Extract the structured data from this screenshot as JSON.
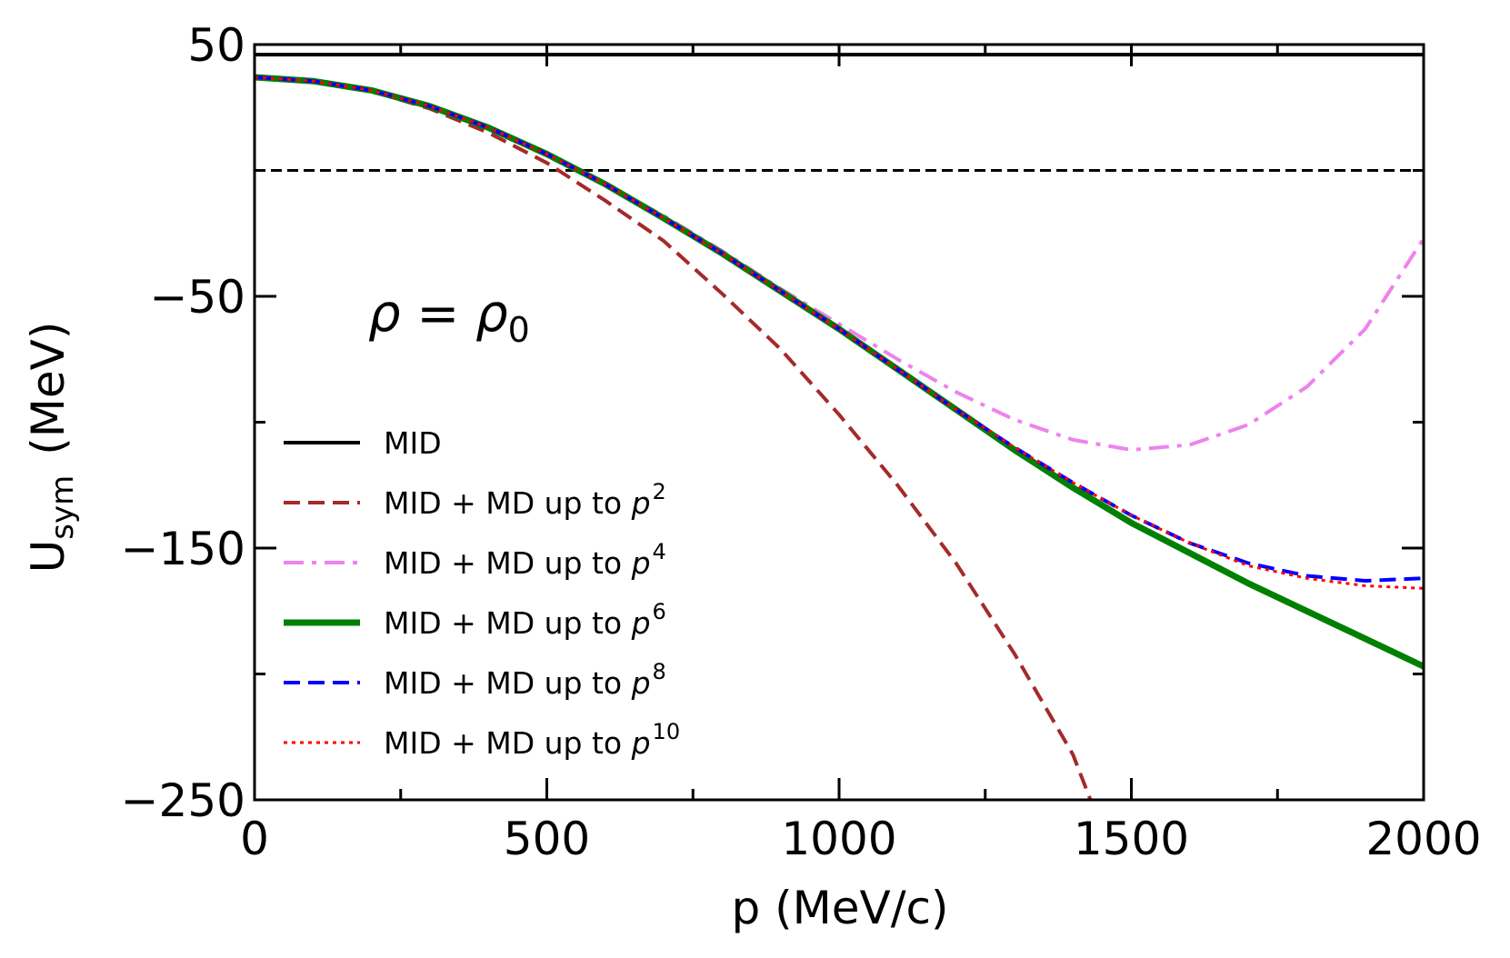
{
  "chart_data": {
    "type": "line",
    "xlabel": "p  (MeV/c)",
    "ylabel": {
      "main": "U",
      "sub": "sym",
      "units": "(MeV)"
    },
    "xlim": [
      0,
      2000
    ],
    "ylim": [
      -250,
      50
    ],
    "x_ticks": [
      0,
      500,
      1000,
      1500,
      2000
    ],
    "y_ticks": [
      50,
      -50,
      -150,
      -250
    ],
    "x_tick_labels": [
      "0",
      "500",
      "1000",
      "1500",
      "2000"
    ],
    "y_tick_labels": [
      "50",
      "−50",
      "−150",
      "−250"
    ],
    "grid": false,
    "legend_placement": "lower-left",
    "annotation": {
      "main": "ρ = ρ",
      "sub": "0"
    },
    "reference_line": {
      "y": 0,
      "style": "dashed",
      "color": "#000000"
    },
    "series": [
      {
        "name": "MID",
        "color": "#000000",
        "dash": "solid",
        "width": 4,
        "legend_exp": "",
        "x": [
          0,
          2000
        ],
        "y": [
          46,
          46
        ]
      },
      {
        "name": "MID + MD up to p",
        "legend_exp": "2",
        "color": "#a52a2a",
        "dash": "dashed",
        "width": 4,
        "x": [
          0,
          100,
          200,
          300,
          400,
          500,
          600,
          700,
          800,
          900,
          1000,
          1100,
          1200,
          1300,
          1400,
          1430
        ],
        "y": [
          37,
          35.5,
          31.5,
          24.5,
          15,
          3,
          -12,
          -28,
          -49,
          -71,
          -97,
          -125,
          -156,
          -192,
          -232,
          -250
        ]
      },
      {
        "name": "MID + MD up to p",
        "legend_exp": "4",
        "color": "#ee82ee",
        "dash": "dashdot",
        "width": 4,
        "x": [
          0,
          100,
          200,
          300,
          400,
          500,
          600,
          700,
          800,
          900,
          1000,
          1100,
          1200,
          1300,
          1400,
          1500,
          1600,
          1700,
          1800,
          1900,
          2000
        ],
        "y": [
          37,
          35.5,
          31.8,
          25.5,
          17,
          6.5,
          -5.5,
          -18,
          -32,
          -47,
          -61,
          -75,
          -88,
          -99,
          -107,
          -111,
          -109,
          -101,
          -86,
          -63,
          -27
        ]
      },
      {
        "name": "MID + MD up to p",
        "legend_exp": "6",
        "color": "#008000",
        "dash": "solid",
        "width": 7,
        "x": [
          0,
          100,
          200,
          300,
          400,
          500,
          600,
          700,
          800,
          900,
          1000,
          1100,
          1200,
          1300,
          1400,
          1500,
          1600,
          1700,
          1800,
          1900,
          2000
        ],
        "y": [
          37,
          35.5,
          31.8,
          25.5,
          17,
          6.5,
          -5.5,
          -19,
          -33,
          -48,
          -63,
          -79,
          -95,
          -111,
          -126,
          -140,
          -152,
          -164,
          -175,
          -186,
          -197
        ]
      },
      {
        "name": "MID + MD up to p",
        "legend_exp": "8",
        "color": "#0000ff",
        "dash": "dashed",
        "width": 4,
        "x": [
          0,
          100,
          200,
          300,
          400,
          500,
          600,
          700,
          800,
          900,
          1000,
          1100,
          1200,
          1300,
          1400,
          1500,
          1600,
          1700,
          1800,
          1900,
          2000
        ],
        "y": [
          37,
          35.5,
          31.8,
          25.5,
          17,
          6.5,
          -5.5,
          -19,
          -33,
          -48,
          -63,
          -79,
          -95,
          -110,
          -124,
          -137,
          -148,
          -156,
          -161,
          -163,
          -162
        ]
      },
      {
        "name": "MID + MD up to p",
        "legend_exp": "10",
        "color": "#ff0000",
        "dash": "dotted",
        "width": 3,
        "x": [
          0,
          100,
          200,
          300,
          400,
          500,
          600,
          700,
          800,
          900,
          1000,
          1100,
          1200,
          1300,
          1400,
          1500,
          1600,
          1700,
          1800,
          1900,
          2000
        ],
        "y": [
          37,
          35.5,
          31.8,
          25.5,
          17,
          6.5,
          -5.5,
          -19,
          -33,
          -48,
          -63,
          -79,
          -95,
          -110,
          -124,
          -137,
          -148,
          -157,
          -162,
          -165,
          -166
        ]
      }
    ]
  }
}
